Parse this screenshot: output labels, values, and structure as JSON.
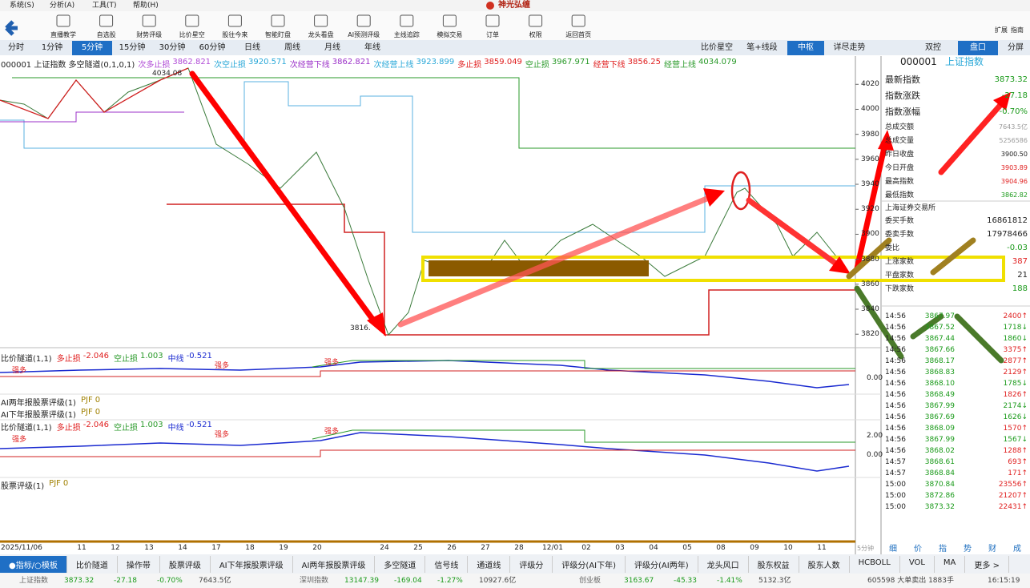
{
  "menu": [
    "系统(S)",
    "分析(A)",
    "工具(T)",
    "帮助(H)"
  ],
  "app_title": "神光弘缠",
  "toolbar": [
    "直播教学",
    "自选股",
    "财势评级",
    "比价星空",
    "股往今来",
    "智能盯盘",
    "龙头看盘",
    "AI预测评级",
    "主线追踪",
    "模拟交易",
    "订单",
    "权限",
    "返回首页"
  ],
  "toolbar_right": [
    "扩展",
    "指南"
  ],
  "period_tabs": [
    {
      "label": "分时"
    },
    {
      "label": "1分钟"
    },
    {
      "label": "5分钟",
      "active": true
    },
    {
      "label": "15分钟"
    },
    {
      "label": "30分钟"
    },
    {
      "label": "60分钟"
    },
    {
      "label": "日线"
    },
    {
      "label": "周线"
    },
    {
      "label": "月线"
    },
    {
      "label": "年线"
    }
  ],
  "view_tabs": [
    {
      "label": "比价星空"
    },
    {
      "label": "笔+线段"
    },
    {
      "label": "中枢",
      "active": true
    },
    {
      "label": "详尽走势"
    }
  ],
  "panel_tabs": [
    {
      "label": "双控"
    },
    {
      "label": "盘口",
      "active": true
    },
    {
      "label": "分屏"
    }
  ],
  "main_chart": {
    "legend_title": "000001 上证指数 多空隧道(0,1,0,1)",
    "legend": [
      {
        "name": "次多止损",
        "value": "3862.821",
        "color": "#b04bd6"
      },
      {
        "name": "次空止损",
        "value": "3920.571",
        "color": "#2aa8d8"
      },
      {
        "name": "次经营下线",
        "value": "3862.821",
        "color": "#9b30c8"
      },
      {
        "name": "次经营上线",
        "value": "3923.899",
        "color": "#2aa8d8"
      },
      {
        "name": "多止损",
        "value": "3859.049",
        "color": "#e02020"
      },
      {
        "name": "空止损",
        "value": "3967.971",
        "color": "#2a9a2a"
      },
      {
        "name": "经营下线",
        "value": "3856.25",
        "color": "#e02020"
      },
      {
        "name": "经营上线",
        "value": "4034.079",
        "color": "#2a9a2a"
      }
    ],
    "ylim": [
      3815,
      4033
    ],
    "yticks": [
      4020,
      4000,
      3980,
      3960,
      3940,
      3920,
      3900,
      3880,
      3860,
      3840,
      3820
    ],
    "annotations": [
      "4034.08",
      "3816."
    ]
  },
  "sub_panels": [
    {
      "title": "比价隧道(1,1)",
      "items": [
        {
          "name": "多止损",
          "value": "-2.046",
          "color": "#e02020"
        },
        {
          "name": "空止损",
          "value": "1.003",
          "color": "#2a9a2a"
        },
        {
          "name": "中线",
          "value": "-0.521",
          "color": "#1a2ad0"
        }
      ],
      "axis": [
        "0.00"
      ],
      "marks": [
        "强多",
        "强多",
        "强多"
      ]
    },
    {
      "title": "AI两年报股票评级(1)",
      "items": [
        {
          "name": "PJF",
          "value": "0",
          "color": "#a08000"
        }
      ]
    },
    {
      "title": "AI下年报股票评级(1)",
      "items": [
        {
          "name": "PJF",
          "value": "0",
          "color": "#a08000"
        }
      ]
    },
    {
      "title": "比价隧道(1,1)",
      "items": [
        {
          "name": "多止损",
          "value": "-2.046",
          "color": "#e02020"
        },
        {
          "name": "空止损",
          "value": "1.003",
          "color": "#2a9a2a"
        },
        {
          "name": "中线",
          "value": "-0.521",
          "color": "#1a2ad0"
        }
      ],
      "axis": [
        "2.00",
        "0.00"
      ],
      "marks": [
        "强多",
        "强多",
        "强多"
      ]
    },
    {
      "title": "股票评级(1)",
      "items": [
        {
          "name": "PJF",
          "value": "0",
          "color": "#a08000"
        }
      ]
    }
  ],
  "date_axis": [
    "2025/11/06",
    "11",
    "12",
    "13",
    "14",
    "17",
    "18",
    "19",
    "20",
    null,
    "24",
    "25",
    "26",
    "27",
    "28",
    "12/01",
    "02",
    "03",
    "04",
    "05",
    "08",
    "09",
    "10",
    "11"
  ],
  "period_label": "5分钟",
  "bottom_tabs": [
    {
      "label": "●指标/○模板",
      "active": true
    },
    {
      "label": "比价隧道"
    },
    {
      "label": "操作带"
    },
    {
      "label": "股票评级"
    },
    {
      "label": "AI下年报股票评级"
    },
    {
      "label": "AI两年报股票评级"
    },
    {
      "label": "多空隧道"
    },
    {
      "label": "信号线"
    },
    {
      "label": "通道线"
    },
    {
      "label": "评级分"
    },
    {
      "label": "评级分(AI下年)"
    },
    {
      "label": "评级分(AI两年)"
    },
    {
      "label": "龙头风口"
    },
    {
      "label": "股东权益"
    },
    {
      "label": "股东人数"
    },
    {
      "label": "HCBOLL"
    },
    {
      "label": "VOL"
    },
    {
      "label": "MA"
    },
    {
      "label": "更多 >"
    }
  ],
  "quote": {
    "code": "000001",
    "name": "上证指数",
    "rows": [
      {
        "label": "最新指数",
        "value": "3873.32",
        "color": "#1a9a1a"
      },
      {
        "label": "指数涨跌",
        "value": "-27.18",
        "color": "#1a9a1a"
      },
      {
        "label": "指数涨幅",
        "value": "-0.70%",
        "color": "#1a9a1a"
      },
      {
        "label": "总成交额",
        "value": "7643.5亿",
        "color": "#999999"
      },
      {
        "label": "总成交量",
        "value": "5256586",
        "color": "#999999"
      },
      {
        "label": "昨日收盘",
        "value": "3900.50",
        "color": "#222222"
      },
      {
        "label": "今日开盘",
        "value": "3903.89",
        "color": "#e02020"
      },
      {
        "label": "最高指数",
        "value": "3904.96",
        "color": "#e02020"
      },
      {
        "label": "最低指数",
        "value": "3862.82",
        "color": "#1a9a1a"
      }
    ],
    "exchange": "上海证券交易所",
    "orders": [
      {
        "label": "委买手数",
        "value": "16861812",
        "color": "#222222"
      },
      {
        "label": "委卖手数",
        "value": "17978466",
        "color": "#222222"
      },
      {
        "label": "委比",
        "value": "-0.03",
        "color": "#1a9a1a"
      },
      {
        "label": "上涨家数",
        "value": "387",
        "color": "#e02020"
      },
      {
        "label": "平盘家数",
        "value": "21",
        "color": "#222222"
      },
      {
        "label": "下跌家数",
        "value": "188",
        "color": "#1a9a1a"
      }
    ]
  },
  "trades": [
    {
      "time": "14:56",
      "price": "3867.97",
      "volume": "2400↑"
    },
    {
      "time": "14:56",
      "price": "3867.52",
      "volume": "1718↓"
    },
    {
      "time": "14:56",
      "price": "3867.44",
      "volume": "1860↓"
    },
    {
      "time": "14:56",
      "price": "3867.66",
      "volume": "3375↑"
    },
    {
      "time": "14:56",
      "price": "3868.17",
      "volume": "2877↑"
    },
    {
      "time": "14:56",
      "price": "3868.83",
      "volume": "2129↑"
    },
    {
      "time": "14:56",
      "price": "3868.10",
      "volume": "1785↓"
    },
    {
      "time": "14:56",
      "price": "3868.49",
      "volume": "1826↑"
    },
    {
      "time": "14:56",
      "price": "3867.99",
      "volume": "2174↓"
    },
    {
      "time": "14:56",
      "price": "3867.69",
      "volume": "1626↓"
    },
    {
      "time": "14:56",
      "price": "3868.09",
      "volume": "1570↑"
    },
    {
      "time": "14:56",
      "price": "3867.99",
      "volume": "1567↓"
    },
    {
      "time": "14:56",
      "price": "3868.02",
      "volume": "1288↑"
    },
    {
      "time": "14:57",
      "price": "3868.61",
      "volume": "693↑"
    },
    {
      "time": "14:57",
      "price": "3868.84",
      "volume": "171↑"
    },
    {
      "time": "15:00",
      "price": "3870.84",
      "volume": "23556↑"
    },
    {
      "time": "15:00",
      "price": "3872.86",
      "volume": "21207↑"
    },
    {
      "time": "15:00",
      "price": "3873.32",
      "volume": "22431↑"
    }
  ],
  "side_tabs": [
    "细",
    "价",
    "指",
    "势",
    "财",
    "成"
  ],
  "status": [
    {
      "name": "上证指数",
      "values": [
        "3873.32",
        "-27.18",
        "-0.70%",
        "7643.5亿"
      ]
    },
    {
      "name": "深圳指数",
      "values": [
        "13147.39",
        "-169.04",
        "-1.27%",
        "10927.6亿"
      ]
    },
    {
      "name": "创业板",
      "values": [
        "3163.67",
        "-45.33",
        "-1.41%",
        "5132.3亿"
      ]
    }
  ],
  "ticker": "605598 大单卖出 1883手",
  "clock": "16:15:19"
}
